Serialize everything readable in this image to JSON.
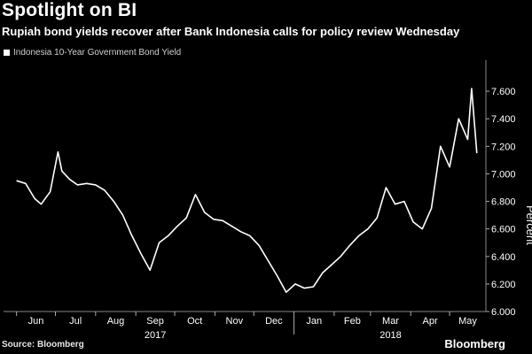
{
  "header": {
    "title": "Spotlight on BI",
    "subtitle": "Rupiah bond yields recover after Bank Indonesia calls for policy review Wednesday"
  },
  "footer": {
    "source": "Source: Bloomberg",
    "brand": "Bloomberg"
  },
  "chart_data": {
    "type": "line",
    "title": "Spotlight on BI",
    "subtitle": "Rupiah bond yields recover after Bank Indonesia calls for policy review Wednesday",
    "ylabel": "Percent",
    "xlabel": "",
    "ylim": [
      6.0,
      7.8
    ],
    "yticks": [
      6.0,
      6.2,
      6.4,
      6.6,
      6.8,
      7.0,
      7.2,
      7.4,
      7.6
    ],
    "ytick_labels": [
      "6.000",
      "6.200",
      "6.400",
      "6.600",
      "6.800",
      "7.000",
      "7.200",
      "7.400",
      "7.600"
    ],
    "x_month_labels": [
      "Jun",
      "Jul",
      "Aug",
      "Sep",
      "Oct",
      "Nov",
      "Dec",
      "Jan",
      "Feb",
      "Mar",
      "Apr",
      "May"
    ],
    "x_year_labels": [
      {
        "label": "2017",
        "under": "Sep"
      },
      {
        "label": "2018",
        "under": "Mar"
      }
    ],
    "grid": false,
    "legend": "top-left",
    "series": [
      {
        "name": "Indonesia 10-Year Government Bond Yield",
        "color": "#ffffff",
        "x": [
          "2017-06-01",
          "2017-06-08",
          "2017-06-15",
          "2017-06-20",
          "2017-06-27",
          "2017-07-03",
          "2017-07-06",
          "2017-07-12",
          "2017-07-18",
          "2017-07-25",
          "2017-08-01",
          "2017-08-08",
          "2017-08-15",
          "2017-08-22",
          "2017-08-29",
          "2017-09-05",
          "2017-09-12",
          "2017-09-19",
          "2017-09-26",
          "2017-10-03",
          "2017-10-10",
          "2017-10-17",
          "2017-10-24",
          "2017-10-31",
          "2017-11-07",
          "2017-11-14",
          "2017-11-21",
          "2017-11-28",
          "2017-12-05",
          "2017-12-12",
          "2017-12-19",
          "2017-12-26",
          "2018-01-02",
          "2018-01-09",
          "2018-01-16",
          "2018-01-23",
          "2018-01-30",
          "2018-02-06",
          "2018-02-13",
          "2018-02-20",
          "2018-02-27",
          "2018-03-06",
          "2018-03-13",
          "2018-03-20",
          "2018-03-27",
          "2018-04-03",
          "2018-04-10",
          "2018-04-17",
          "2018-04-24",
          "2018-05-01",
          "2018-05-08",
          "2018-05-15",
          "2018-05-18",
          "2018-05-22"
        ],
        "y": [
          6.95,
          6.93,
          6.82,
          6.78,
          6.87,
          7.16,
          7.02,
          6.96,
          6.92,
          6.93,
          6.92,
          6.88,
          6.8,
          6.7,
          6.55,
          6.42,
          6.3,
          6.5,
          6.55,
          6.62,
          6.68,
          6.85,
          6.72,
          6.67,
          6.66,
          6.62,
          6.58,
          6.55,
          6.48,
          6.37,
          6.26,
          6.14,
          6.2,
          6.17,
          6.18,
          6.28,
          6.34,
          6.4,
          6.48,
          6.55,
          6.6,
          6.68,
          6.9,
          6.78,
          6.8,
          6.65,
          6.6,
          6.75,
          7.2,
          7.05,
          7.4,
          7.25,
          7.62,
          7.15
        ]
      }
    ]
  }
}
